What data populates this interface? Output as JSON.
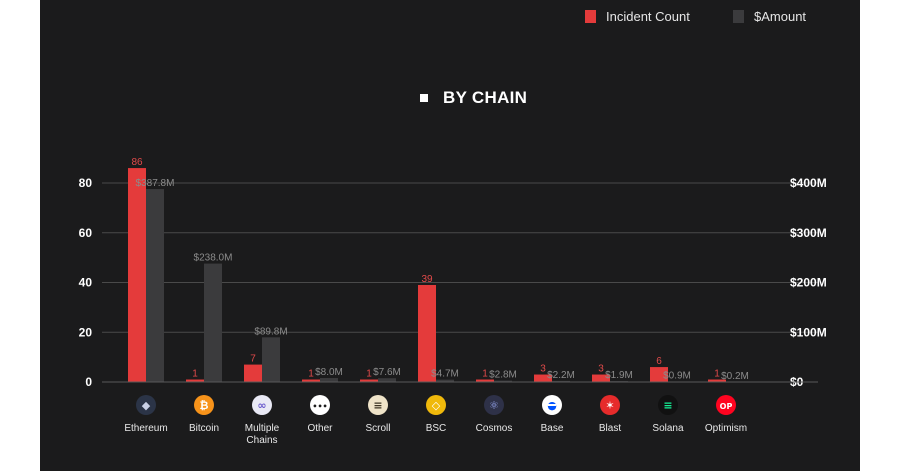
{
  "legend": {
    "incident_label": "Incident Count",
    "amount_label": "$Amount"
  },
  "chart_title": "BY CHAIN",
  "colors": {
    "background": "#1b1b1c",
    "incident": "#e43b3b",
    "amount": "#3b3b3d",
    "grid": "#4a4a4a",
    "axis_text": "#ffffff",
    "incident_label": "#e24a4a",
    "amount_label": "#8c8c8c"
  },
  "chart_data": {
    "type": "bar",
    "title": "BY CHAIN",
    "categories": [
      "Ethereum",
      "Bitcoin",
      "Multiple Chains",
      "Other",
      "Scroll",
      "BSC",
      "Cosmos",
      "Base",
      "Blast",
      "Solana",
      "Optimism"
    ],
    "category_icons": [
      "ethereum-icon",
      "bitcoin-icon",
      "multiple-chains-icon",
      "other-icon",
      "scroll-icon",
      "bsc-icon",
      "cosmos-icon",
      "base-icon",
      "blast-icon",
      "solana-icon",
      "optimism-icon"
    ],
    "series": [
      {
        "name": "Incident Count",
        "axis": "left",
        "values": [
          86,
          1,
          7,
          1,
          1,
          39,
          1,
          3,
          3,
          6,
          1
        ],
        "labels": [
          "86",
          "1",
          "7",
          "1",
          "1",
          "39",
          "1",
          "3",
          "3",
          "6",
          "1"
        ]
      },
      {
        "name": "$Amount",
        "axis": "right",
        "values": [
          387.8,
          238.0,
          89.8,
          8.0,
          7.6,
          4.7,
          2.8,
          2.2,
          1.9,
          0.9,
          0.2
        ],
        "labels": [
          "$387.8M",
          "$238.0M",
          "$89.8M",
          "$8.0M",
          "$7.6M",
          "$4.7M",
          "$2.8M",
          "$2.2M",
          "$1.9M",
          "$0.9M",
          "$0.2M"
        ]
      }
    ],
    "y_left": {
      "min": 0,
      "max": 80,
      "ticks": [
        0,
        20,
        40,
        60,
        80
      ],
      "tick_labels": [
        "0",
        "20",
        "40",
        "60",
        "80"
      ]
    },
    "y_right": {
      "min": 0,
      "max": 400,
      "ticks": [
        0,
        100,
        200,
        300,
        400
      ],
      "tick_labels": [
        "$0",
        "$100M",
        "$200M",
        "$300M",
        "$400M"
      ]
    },
    "grid": true,
    "legend_position": "top-right"
  }
}
